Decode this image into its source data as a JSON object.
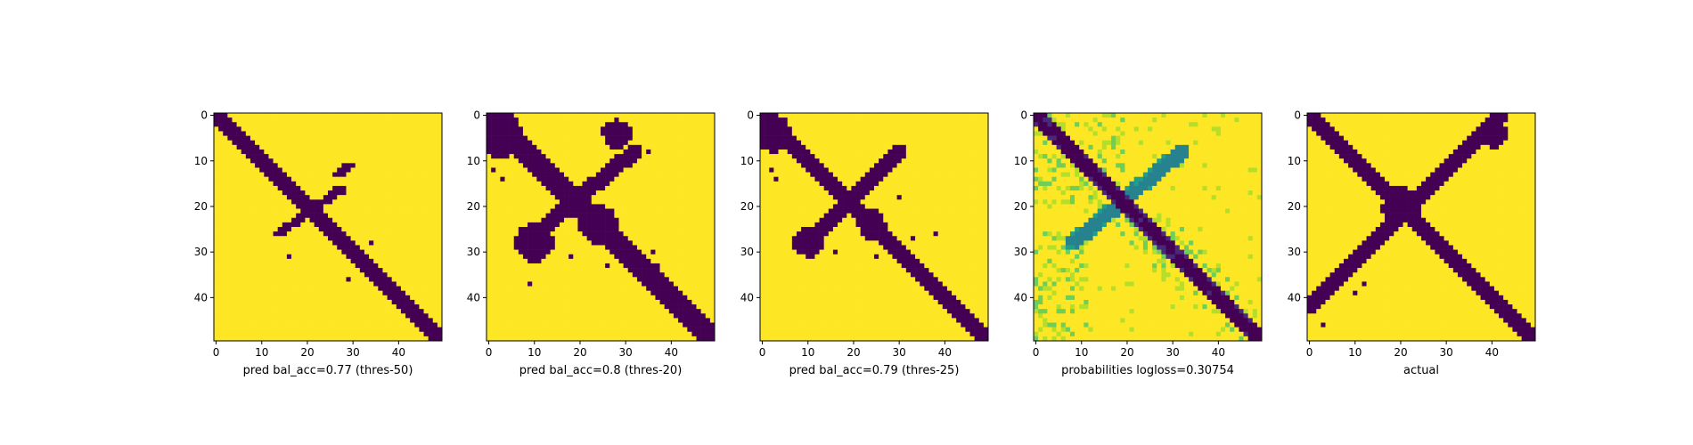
{
  "chart_data": [
    {
      "type": "heatmap",
      "xlabel": "pred bal_acc=0.77 (thres-50)",
      "size": 50,
      "x_ticks": [
        0,
        10,
        20,
        30,
        40
      ],
      "y_ticks": [
        0,
        10,
        20,
        30,
        40
      ],
      "colormap": "viridis",
      "values": "binary",
      "features": {
        "main_diagonal": {
          "from": [
            0,
            0
          ],
          "to": [
            49,
            49
          ],
          "width": 3
        },
        "anti_diagonal_blobs": [
          [
            14,
            26,
            20,
            4
          ],
          [
            27,
            13,
            4,
            3
          ]
        ],
        "scatter": [
          [
            34,
            28
          ],
          [
            29,
            36
          ],
          [
            16,
            31
          ]
        ]
      }
    },
    {
      "type": "heatmap",
      "xlabel": "pred bal_acc=0.8 (thres-20)",
      "size": 50,
      "x_ticks": [
        0,
        10,
        20,
        30,
        40
      ],
      "y_ticks": [
        0,
        10,
        20,
        30,
        40
      ],
      "colormap": "viridis",
      "values": "binary",
      "features": {
        "main_diagonal": {
          "from": [
            0,
            0
          ],
          "to": [
            49,
            49
          ],
          "width": 5
        },
        "anti_diagonal": {
          "from": [
            8,
            28
          ],
          "to": [
            32,
            8
          ],
          "width": 4
        },
        "blobs": [
          [
            2,
            4,
            5
          ],
          [
            10,
            28,
            4
          ],
          [
            24,
            24,
            4
          ],
          [
            28,
            4,
            3
          ]
        ],
        "scatter": [
          [
            1,
            12
          ],
          [
            3,
            14
          ],
          [
            9,
            37
          ],
          [
            18,
            31
          ],
          [
            26,
            33
          ],
          [
            37,
            33
          ],
          [
            36,
            30
          ],
          [
            35,
            8
          ]
        ]
      }
    },
    {
      "type": "heatmap",
      "xlabel": "pred bal_acc=0.79 (thres-25)",
      "size": 50,
      "x_ticks": [
        0,
        10,
        20,
        30,
        40
      ],
      "y_ticks": [
        0,
        10,
        20,
        30,
        40
      ],
      "colormap": "viridis",
      "values": "binary",
      "features": {
        "main_diagonal": {
          "from": [
            0,
            0
          ],
          "to": [
            49,
            49
          ],
          "width": 4
        },
        "anti_diagonal": {
          "from": [
            10,
            28
          ],
          "to": [
            30,
            8
          ],
          "width": 3
        },
        "blobs": [
          [
            2,
            4,
            4
          ],
          [
            10,
            28,
            3
          ],
          [
            24,
            24,
            3
          ]
        ],
        "scatter": [
          [
            2,
            12
          ],
          [
            3,
            14
          ],
          [
            16,
            30
          ],
          [
            30,
            18
          ],
          [
            33,
            27
          ],
          [
            38,
            26
          ],
          [
            25,
            31
          ]
        ]
      }
    },
    {
      "type": "heatmap",
      "xlabel": "probabilities logloss=0.30754",
      "size": 50,
      "x_ticks": [
        0,
        10,
        20,
        30,
        40
      ],
      "y_ticks": [
        0,
        10,
        20,
        30,
        40
      ],
      "colormap": "viridis",
      "values": "continuous",
      "features": {
        "main_diagonal": {
          "from": [
            0,
            0
          ],
          "to": [
            49,
            49
          ],
          "level": 0.05
        },
        "anti_diagonal": {
          "from": [
            8,
            28
          ],
          "to": [
            32,
            8
          ],
          "level": 0.45
        },
        "noise": "light green speckle in upper-left and lower-left regions"
      }
    },
    {
      "type": "heatmap",
      "xlabel": "actual",
      "size": 50,
      "x_ticks": [
        0,
        10,
        20,
        30,
        40
      ],
      "y_ticks": [
        0,
        10,
        20,
        30,
        40
      ],
      "colormap": "viridis",
      "values": "binary",
      "features": {
        "main_diagonal": {
          "from": [
            0,
            0
          ],
          "to": [
            49,
            49
          ],
          "width": 3
        },
        "anti_diagonal": {
          "from": [
            0,
            42
          ],
          "to": [
            42,
            0
          ],
          "width": 3
        },
        "blobs": [
          [
            20,
            20,
            4
          ],
          [
            40,
            4,
            3
          ]
        ],
        "scatter": [
          [
            3,
            46
          ],
          [
            10,
            39
          ],
          [
            12,
            37
          ],
          [
            30,
            10
          ],
          [
            32,
            9
          ]
        ]
      }
    }
  ]
}
